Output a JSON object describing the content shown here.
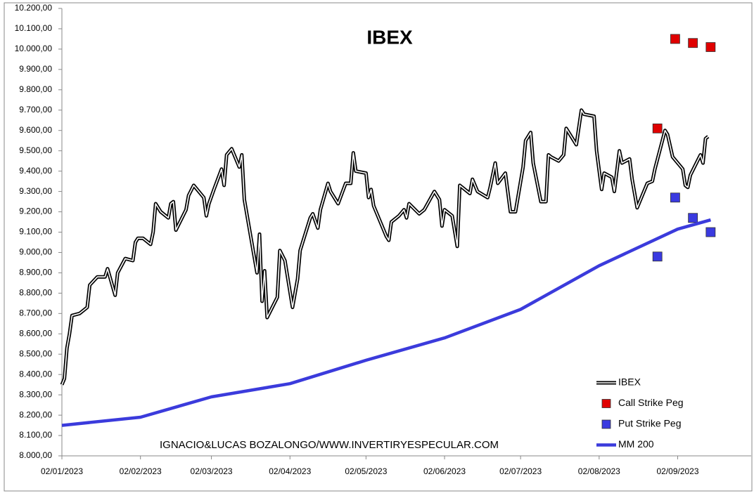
{
  "chart_data": {
    "type": "line",
    "title": "IBEX",
    "footer": "IGNACIO&LUCAS BOZALONGO/WWW.INVERTIRYESPECULAR.COM",
    "xlim": [
      "02/01/2023",
      "01/10/2023"
    ],
    "xticks": [
      "02/01/2023",
      "02/02/2023",
      "02/03/2023",
      "02/04/2023",
      "02/05/2023",
      "02/06/2023",
      "02/07/2023",
      "02/08/2023",
      "02/09/2023"
    ],
    "ylim": [
      8000,
      10200
    ],
    "yticks": [
      {
        "value": 8000,
        "label": "8.000,00"
      },
      {
        "value": 8100,
        "label": "8.100,00"
      },
      {
        "value": 8200,
        "label": "8.200,00"
      },
      {
        "value": 8300,
        "label": "8.300,00"
      },
      {
        "value": 8400,
        "label": "8.400,00"
      },
      {
        "value": 8500,
        "label": "8.500,00"
      },
      {
        "value": 8600,
        "label": "8.600,00"
      },
      {
        "value": 8700,
        "label": "8.700,00"
      },
      {
        "value": 8800,
        "label": "8.800,00"
      },
      {
        "value": 8900,
        "label": "8.900,00"
      },
      {
        "value": 9000,
        "label": "9.000,00"
      },
      {
        "value": 9100,
        "label": "9.100,00"
      },
      {
        "value": 9200,
        "label": "9.200,00"
      },
      {
        "value": 9300,
        "label": "9.300,00"
      },
      {
        "value": 9400,
        "label": "9.400,00"
      },
      {
        "value": 9500,
        "label": "9.500,00"
      },
      {
        "value": 9600,
        "label": "9.600,00"
      },
      {
        "value": 9700,
        "label": "9.700,00"
      },
      {
        "value": 9800,
        "label": "9.800,00"
      },
      {
        "value": 9900,
        "label": "9.900,00"
      },
      {
        "value": 10000,
        "label": "10.000,00"
      },
      {
        "value": 10100,
        "label": "10.100,00"
      },
      {
        "value": 10200,
        "label": "10.200,00"
      }
    ],
    "grid": false,
    "legend": "lower right",
    "series": [
      {
        "name": "IBEX",
        "type": "line",
        "color": "#000000",
        "x": [
          "02/01/2023",
          "03/01/2023",
          "04/01/2023",
          "05/01/2023",
          "06/01/2023",
          "09/01/2023",
          "12/01/2023",
          "13/01/2023",
          "16/01/2023",
          "19/01/2023",
          "20/01/2023",
          "23/01/2023",
          "24/01/2023",
          "27/01/2023",
          "30/01/2023",
          "31/01/2023",
          "01/02/2023",
          "03/02/2023",
          "06/02/2023",
          "07/02/2023",
          "08/02/2023",
          "10/02/2023",
          "13/02/2023",
          "14/02/2023",
          "15/02/2023",
          "16/02/2023",
          "20/02/2023",
          "21/02/2023",
          "23/02/2023",
          "27/02/2023",
          "28/02/2023",
          "01/03/2023",
          "03/03/2023",
          "06/03/2023",
          "07/03/2023",
          "08/03/2023",
          "10/03/2023",
          "13/03/2023",
          "14/03/2023",
          "15/03/2023",
          "20/03/2023",
          "21/03/2023",
          "22/03/2023",
          "23/03/2023",
          "24/03/2023",
          "28/03/2023",
          "29/03/2023",
          "31/03/2023",
          "03/04/2023",
          "05/04/2023",
          "06/04/2023",
          "10/04/2023",
          "11/04/2023",
          "13/04/2023",
          "14/04/2023",
          "17/04/2023",
          "18/04/2023",
          "21/04/2023",
          "24/04/2023",
          "26/04/2023",
          "27/04/2023",
          "28/04/2023",
          "02/05/2023",
          "03/05/2023",
          "04/05/2023",
          "05/05/2023",
          "10/05/2023",
          "11/05/2023",
          "12/05/2023",
          "15/05/2023",
          "17/05/2023",
          "18/05/2023",
          "19/05/2023",
          "23/05/2023",
          "25/05/2023",
          "29/05/2023",
          "31/05/2023",
          "01/06/2023",
          "02/06/2023",
          "05/06/2023",
          "07/06/2023",
          "08/06/2023",
          "12/06/2023",
          "13/06/2023",
          "15/06/2023",
          "19/06/2023",
          "20/06/2023",
          "22/06/2023",
          "23/06/2023",
          "26/06/2023",
          "28/06/2023",
          "30/06/2023",
          "03/07/2023",
          "04/07/2023",
          "06/07/2023",
          "07/07/2023",
          "10/07/2023",
          "12/07/2023",
          "13/07/2023",
          "14/07/2023",
          "17/07/2023",
          "19/07/2023",
          "20/07/2023",
          "24/07/2023",
          "26/07/2023",
          "27/07/2023",
          "31/07/2023",
          "01/08/2023",
          "03/08/2023",
          "04/08/2023",
          "07/08/2023",
          "08/08/2023",
          "10/08/2023",
          "11/08/2023",
          "14/08/2023",
          "15/08/2023",
          "17/08/2023",
          "21/08/2023",
          "23/08/2023",
          "24/08/2023",
          "28/08/2023",
          "29/08/2023",
          "31/08/2023",
          "04/09/2023",
          "05/09/2023",
          "06/09/2023",
          "07/09/2023",
          "11/09/2023",
          "12/09/2023",
          "13/09/2023",
          "14/09/2023"
        ],
        "values": [
          8350,
          8380,
          8530,
          8600,
          8690,
          8700,
          8730,
          8840,
          8880,
          8880,
          8920,
          8790,
          8900,
          8970,
          8960,
          9050,
          9070,
          9070,
          9040,
          9100,
          9240,
          9200,
          9170,
          9240,
          9250,
          9110,
          9210,
          9280,
          9330,
          9270,
          9180,
          9240,
          9310,
          9410,
          9330,
          9480,
          9510,
          9420,
          9480,
          9260,
          8900,
          9090,
          8760,
          8910,
          8680,
          8780,
          9010,
          8960,
          8730,
          8870,
          9010,
          9170,
          9190,
          9120,
          9210,
          9340,
          9300,
          9240,
          9340,
          9340,
          9490,
          9400,
          9390,
          9270,
          9310,
          9230,
          9080,
          9060,
          9150,
          9180,
          9210,
          9170,
          9240,
          9190,
          9210,
          9300,
          9260,
          9130,
          9210,
          9180,
          9030,
          9330,
          9290,
          9360,
          9300,
          9270,
          9320,
          9440,
          9340,
          9390,
          9200,
          9200,
          9420,
          9550,
          9590,
          9440,
          9250,
          9250,
          9480,
          9470,
          9450,
          9480,
          9610,
          9530,
          9700,
          9680,
          9670,
          9500,
          9310,
          9390,
          9370,
          9300,
          9500,
          9440,
          9460,
          9360,
          9220,
          9340,
          9350,
          9410,
          9600,
          9580,
          9470,
          9410,
          9330,
          9320,
          9380,
          9480,
          9440,
          9560,
          9570
        ]
      },
      {
        "name": "Call Strike Peg",
        "type": "scatter",
        "color": "#e00000",
        "x": [
          "25/08/2023",
          "01/09/2023",
          "08/09/2023",
          "15/09/2023"
        ],
        "values": [
          9610,
          10050,
          10030,
          10010
        ]
      },
      {
        "name": "Put Strike Peg",
        "type": "scatter",
        "color": "#3a3ae0",
        "x": [
          "25/08/2023",
          "01/09/2023",
          "08/09/2023",
          "15/09/2023"
        ],
        "values": [
          8980,
          9270,
          9170,
          9100
        ]
      },
      {
        "name": "MM 200",
        "type": "line",
        "color": "#3b3bdc",
        "x": [
          "02/01/2023",
          "02/02/2023",
          "02/03/2023",
          "02/04/2023",
          "02/05/2023",
          "02/06/2023",
          "02/07/2023",
          "02/08/2023",
          "02/09/2023",
          "15/09/2023"
        ],
        "values": [
          8150,
          8190,
          8290,
          8355,
          8470,
          8580,
          8720,
          8935,
          9115,
          9160
        ]
      }
    ]
  }
}
